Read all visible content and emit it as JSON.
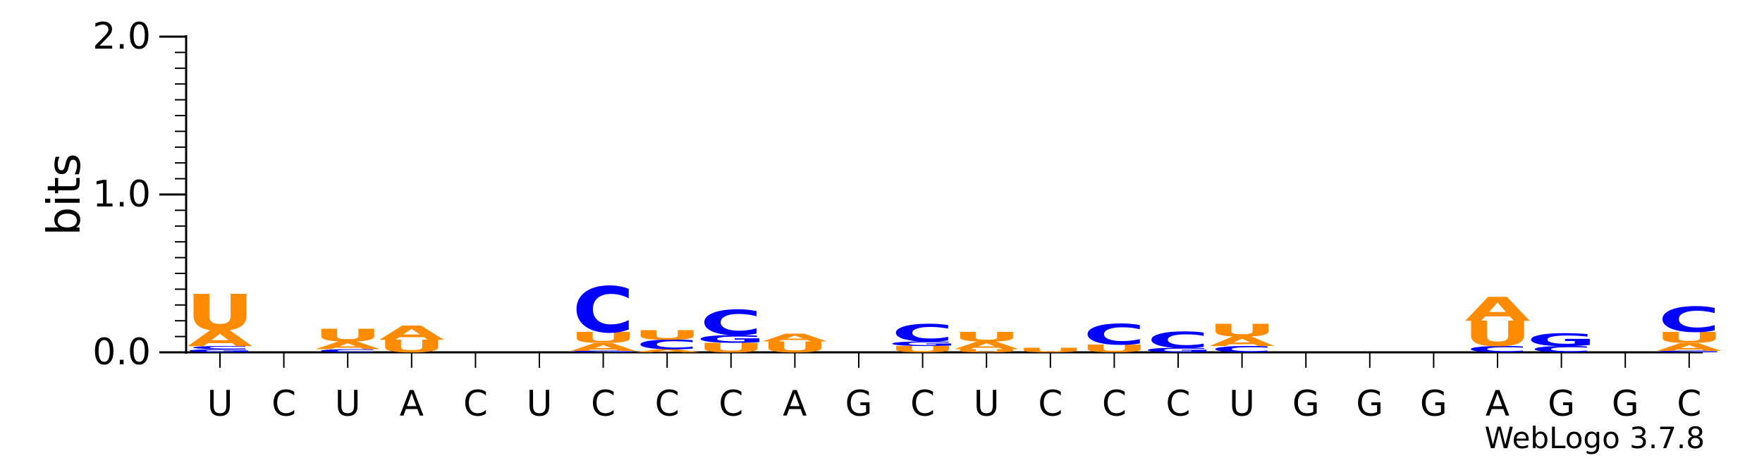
{
  "chart_data": {
    "type": "sequence-logo",
    "ylabel": "bits",
    "ylim": [
      0,
      2.0
    ],
    "yticks": [
      "0.0",
      "1.0",
      "2.0"
    ],
    "credit": "WebLogo 3.7.8",
    "positions": [
      "U",
      "C",
      "U",
      "A",
      "C",
      "U",
      "C",
      "C",
      "C",
      "A",
      "G",
      "C",
      "U",
      "C",
      "C",
      "C",
      "U",
      "G",
      "G",
      "G",
      "A",
      "G",
      "G",
      "C"
    ],
    "colors": {
      "A": "#ff8c00",
      "U": "#ff8c00",
      "C": "#0000ff",
      "G": "#0000ff"
    },
    "stacks": [
      [
        {
          "l": "G",
          "h": 0.02
        },
        {
          "l": "C",
          "h": 0.02
        },
        {
          "l": "A",
          "h": 0.1
        },
        {
          "l": "U",
          "h": 0.23
        }
      ],
      [],
      [
        {
          "l": "C",
          "h": 0.02
        },
        {
          "l": "A",
          "h": 0.05
        },
        {
          "l": "U",
          "h": 0.08
        }
      ],
      [
        {
          "l": "U",
          "h": 0.08
        },
        {
          "l": "A",
          "h": 0.09
        }
      ],
      [],
      [],
      [
        {
          "l": "G",
          "h": 0.01
        },
        {
          "l": "A",
          "h": 0.05
        },
        {
          "l": "U",
          "h": 0.07
        },
        {
          "l": "C",
          "h": 0.29
        }
      ],
      [
        {
          "l": "A",
          "h": 0.02
        },
        {
          "l": "C",
          "h": 0.06
        },
        {
          "l": "U",
          "h": 0.06
        }
      ],
      [
        {
          "l": "U",
          "h": 0.06
        },
        {
          "l": "G",
          "h": 0.05
        },
        {
          "l": "C",
          "h": 0.16
        }
      ],
      [
        {
          "l": "U",
          "h": 0.07
        },
        {
          "l": "A",
          "h": 0.05
        }
      ],
      [],
      [
        {
          "l": "U",
          "h": 0.04
        },
        {
          "l": "G",
          "h": 0.03
        },
        {
          "l": "C",
          "h": 0.11
        }
      ],
      [
        {
          "l": "U",
          "h": 0.02
        },
        {
          "l": "A",
          "h": 0.05
        },
        {
          "l": "U",
          "h": 0.06
        }
      ],
      [
        {
          "l": "U",
          "h": 0.03
        }
      ],
      [
        {
          "l": "U",
          "h": 0.05
        },
        {
          "l": "C",
          "h": 0.13
        }
      ],
      [
        {
          "l": "G",
          "h": 0.03
        },
        {
          "l": "C",
          "h": 0.1
        }
      ],
      [
        {
          "l": "C",
          "h": 0.04
        },
        {
          "l": "A",
          "h": 0.06
        },
        {
          "l": "U",
          "h": 0.08
        }
      ],
      [],
      [],
      [],
      [
        {
          "l": "C",
          "h": 0.04
        },
        {
          "l": "U",
          "h": 0.16
        },
        {
          "l": "A",
          "h": 0.15
        }
      ],
      [
        {
          "l": "C",
          "h": 0.04
        },
        {
          "l": "G",
          "h": 0.08
        }
      ],
      [],
      [
        {
          "l": "G",
          "h": 0.01
        },
        {
          "l": "A",
          "h": 0.05
        },
        {
          "l": "U",
          "h": 0.07
        },
        {
          "l": "C",
          "h": 0.16
        }
      ]
    ]
  }
}
